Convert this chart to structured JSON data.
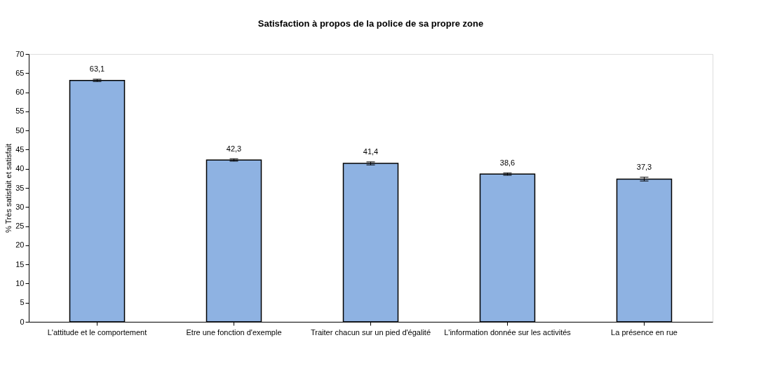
{
  "chart_data": {
    "type": "bar",
    "title": "Satisfaction à propos de la police de sa propre zone",
    "ylabel": "% Très satisfait et satisfait",
    "categories": [
      "L'attitude et le comportement",
      "Etre une fonction d'exemple",
      "Traiter chacun sur un pied d'égalité",
      "L'information donnée sur les activités",
      "La présence en rue"
    ],
    "values": [
      63.1,
      42.3,
      41.4,
      38.6,
      37.3
    ],
    "value_labels": [
      "63,1",
      "42,3",
      "41,4",
      "38,6",
      "37,3"
    ],
    "errors": [
      0.3,
      0.3,
      0.4,
      0.3,
      0.5
    ],
    "color": "#8eb2e2",
    "ylim": [
      0,
      70
    ],
    "yticks": [
      0,
      5,
      10,
      15,
      20,
      25,
      30,
      35,
      40,
      45,
      50,
      55,
      60,
      65,
      70
    ],
    "grid": false
  }
}
